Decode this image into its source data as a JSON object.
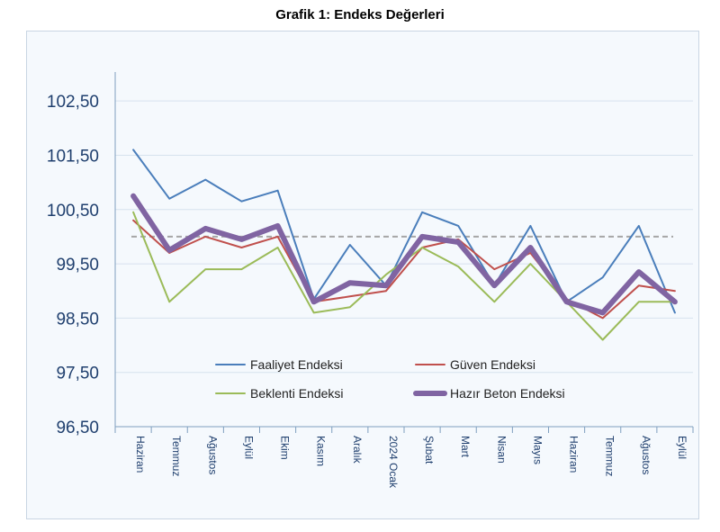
{
  "chart_data": {
    "type": "line",
    "title": "Grafik 1: Endeks Değerleri",
    "xlabel": "",
    "ylabel": "",
    "categories": [
      "Haziran",
      "Temmuz",
      "Ağustos",
      "Eylül",
      "Ekim",
      "Kasım",
      "Aralık",
      "2024 Ocak",
      "Şubat",
      "Mart",
      "Nisan",
      "Mayıs",
      "Haziran",
      "Temmuz",
      "Ağustos",
      "Eylül"
    ],
    "yticks": [
      "96,50",
      "97,50",
      "98,50",
      "99,50",
      "100,50",
      "101,50",
      "102,50"
    ],
    "ylim": [
      96.5,
      103.0
    ],
    "reference_line": 100,
    "grid": true,
    "legend_position": "bottom-inside",
    "series": [
      {
        "name": "Faaliyet Endeksi",
        "color": "#4a7ebb",
        "width": 2,
        "values": [
          101.6,
          100.7,
          101.05,
          100.65,
          100.85,
          98.85,
          99.85,
          99.1,
          100.45,
          100.2,
          99.1,
          100.2,
          98.8,
          99.25,
          100.2,
          98.6
        ]
      },
      {
        "name": "Güven Endeksi",
        "color": "#c0504d",
        "width": 2,
        "values": [
          100.3,
          99.7,
          100.0,
          99.8,
          100.0,
          98.8,
          98.9,
          99.0,
          99.8,
          99.95,
          99.4,
          99.7,
          98.85,
          98.5,
          99.1,
          99.0
        ]
      },
      {
        "name": "Beklenti Endeksi",
        "color": "#9bbb59",
        "width": 2,
        "values": [
          100.45,
          98.8,
          99.4,
          99.4,
          99.8,
          98.6,
          98.7,
          99.3,
          99.8,
          99.45,
          98.8,
          99.5,
          98.8,
          98.1,
          98.8,
          98.8
        ]
      },
      {
        "name": "Hazır Beton Endeksi",
        "color": "#8064a2",
        "width": 6,
        "values": [
          100.75,
          99.75,
          100.15,
          99.95,
          100.2,
          98.8,
          99.15,
          99.1,
          100.0,
          99.9,
          99.1,
          99.8,
          98.8,
          98.6,
          99.35,
          98.8
        ]
      }
    ]
  }
}
